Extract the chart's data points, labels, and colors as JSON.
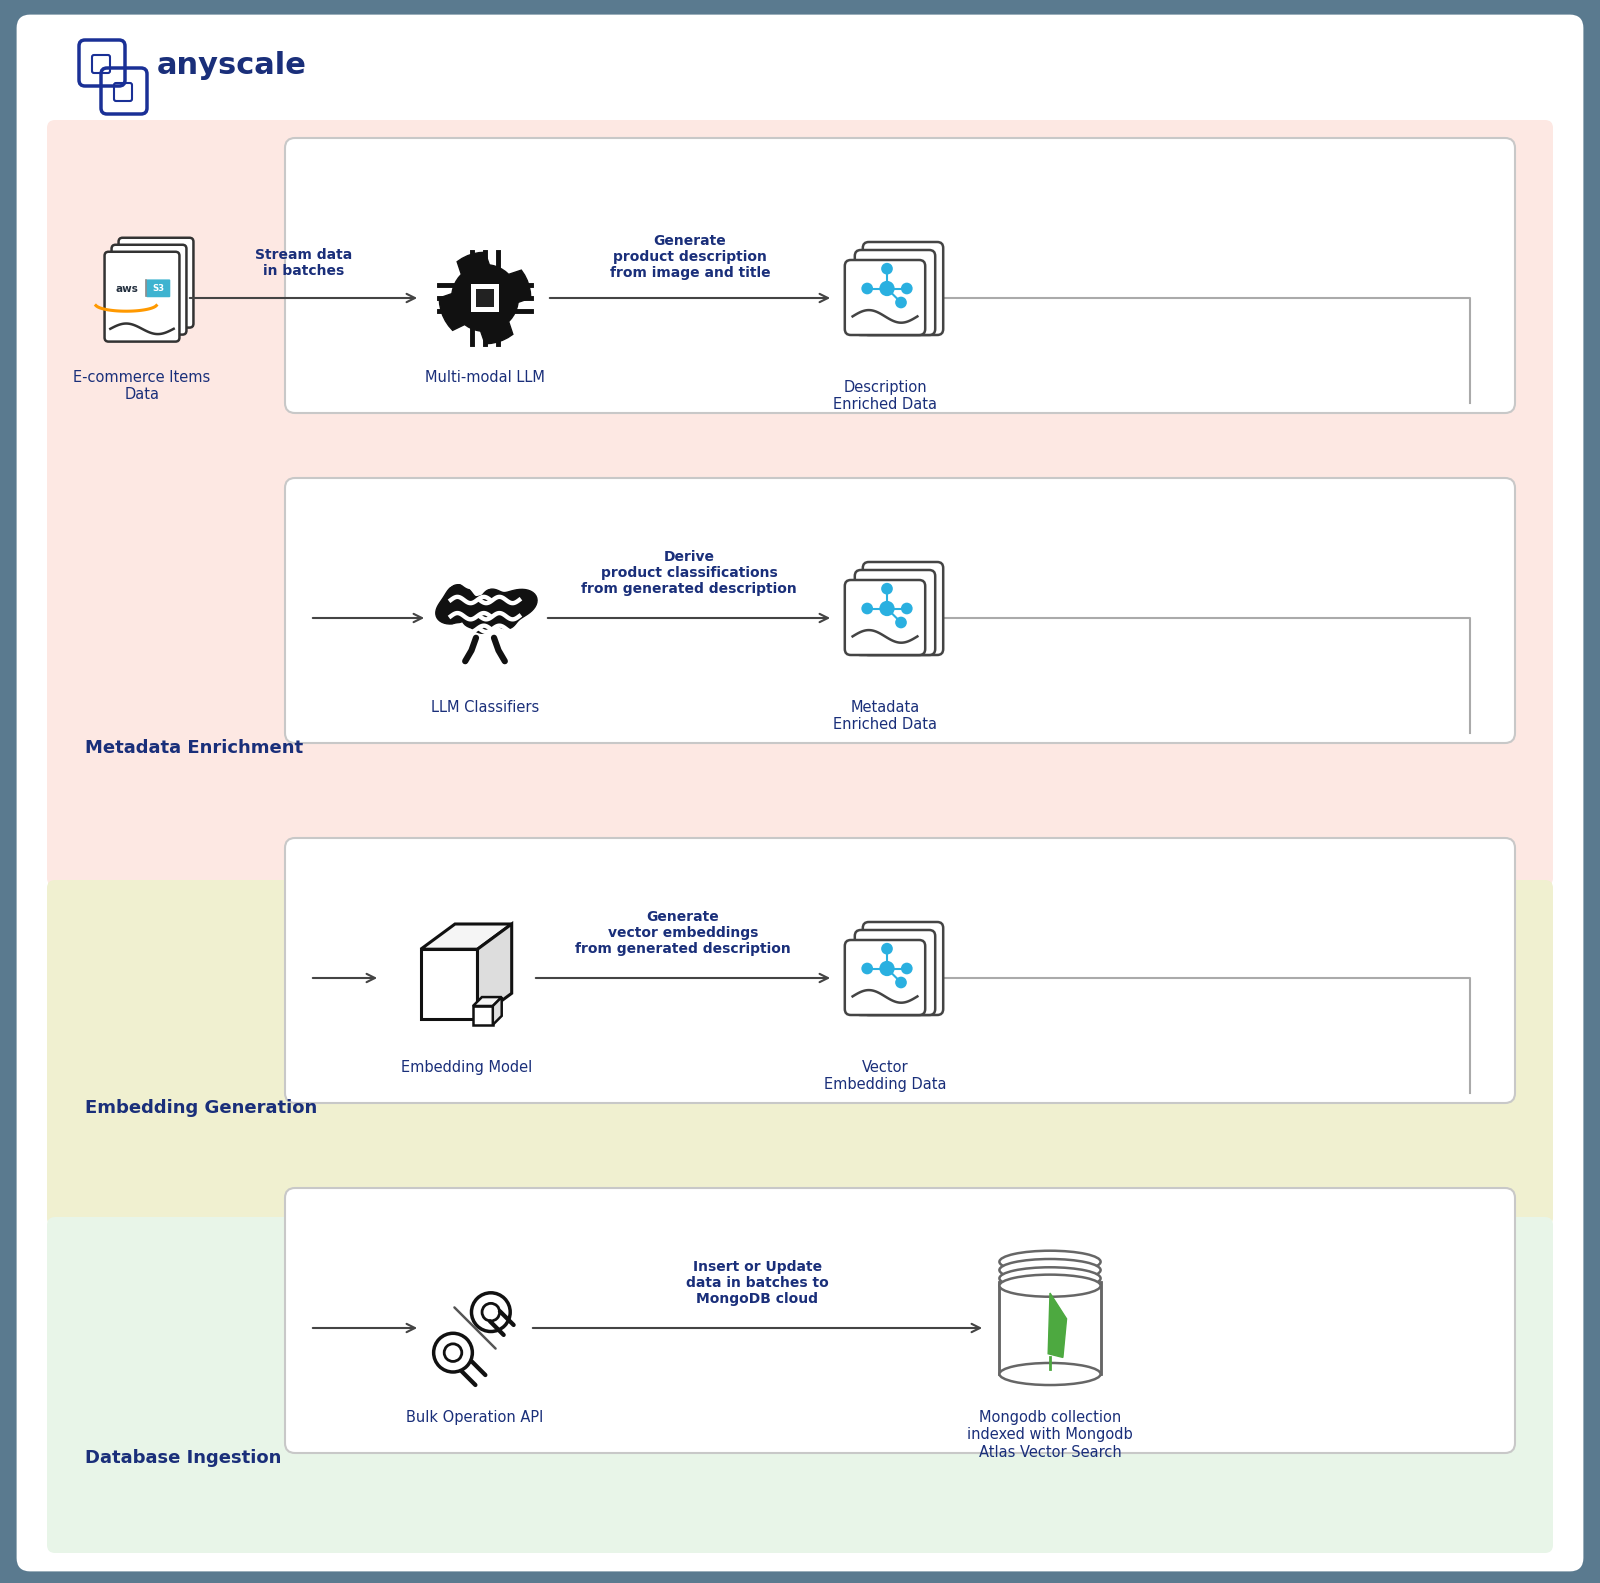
{
  "outer_bg": "#5a7a8f",
  "white_bg": "#ffffff",
  "title_text": "anyscale",
  "title_color": "#1a2f7a",
  "section_pink_bg": "#fde8e3",
  "section_yellow_bg": "#f0f0d0",
  "section_green_bg": "#e8f5e8",
  "section1_label": "Metadata Enrichment",
  "section2_label": "Embedding Generation",
  "section3_label": "Database Ingestion",
  "arrow_color": "#444444",
  "text_color": "#2a2a3a",
  "text_color_dark": "#1a2f7a",
  "box_border_color": "#bbbbbb",
  "icon_color": "#111111",
  "row1_label1": "Stream data\nin batches",
  "row1_label2": "Generate\nproduct description\nfrom image and title",
  "row2_label1": "Derive\nproduct classifications\nfrom generated description",
  "row3_label1": "Generate\nvector embeddings\nfrom generated description",
  "row4_label1": "Insert or Update\ndata in batches to\nMongoDB cloud",
  "node1_label": "E-commerce Items\nData",
  "node2_label": "Multi-modal LLM",
  "node3_label": "Description\nEnriched Data",
  "node4_label": "LLM Classifiers",
  "node5_label": "Metadata\nEnriched Data",
  "node6_label": "Embedding Model",
  "node7_label": "Vector\nEmbedding Data",
  "node8_label": "Bulk Operation API",
  "node9_label": "Mongodb collection\nindexed with Mongodb\nAtlas Vector Search",
  "anyscale_blue": "#1a3096",
  "icon_blue": "#2ab0e0",
  "mongo_green": "#4da940",
  "aws_orange": "#ff9900",
  "aws_dark": "#232f3e",
  "s3_blue": "#3eb3d0"
}
